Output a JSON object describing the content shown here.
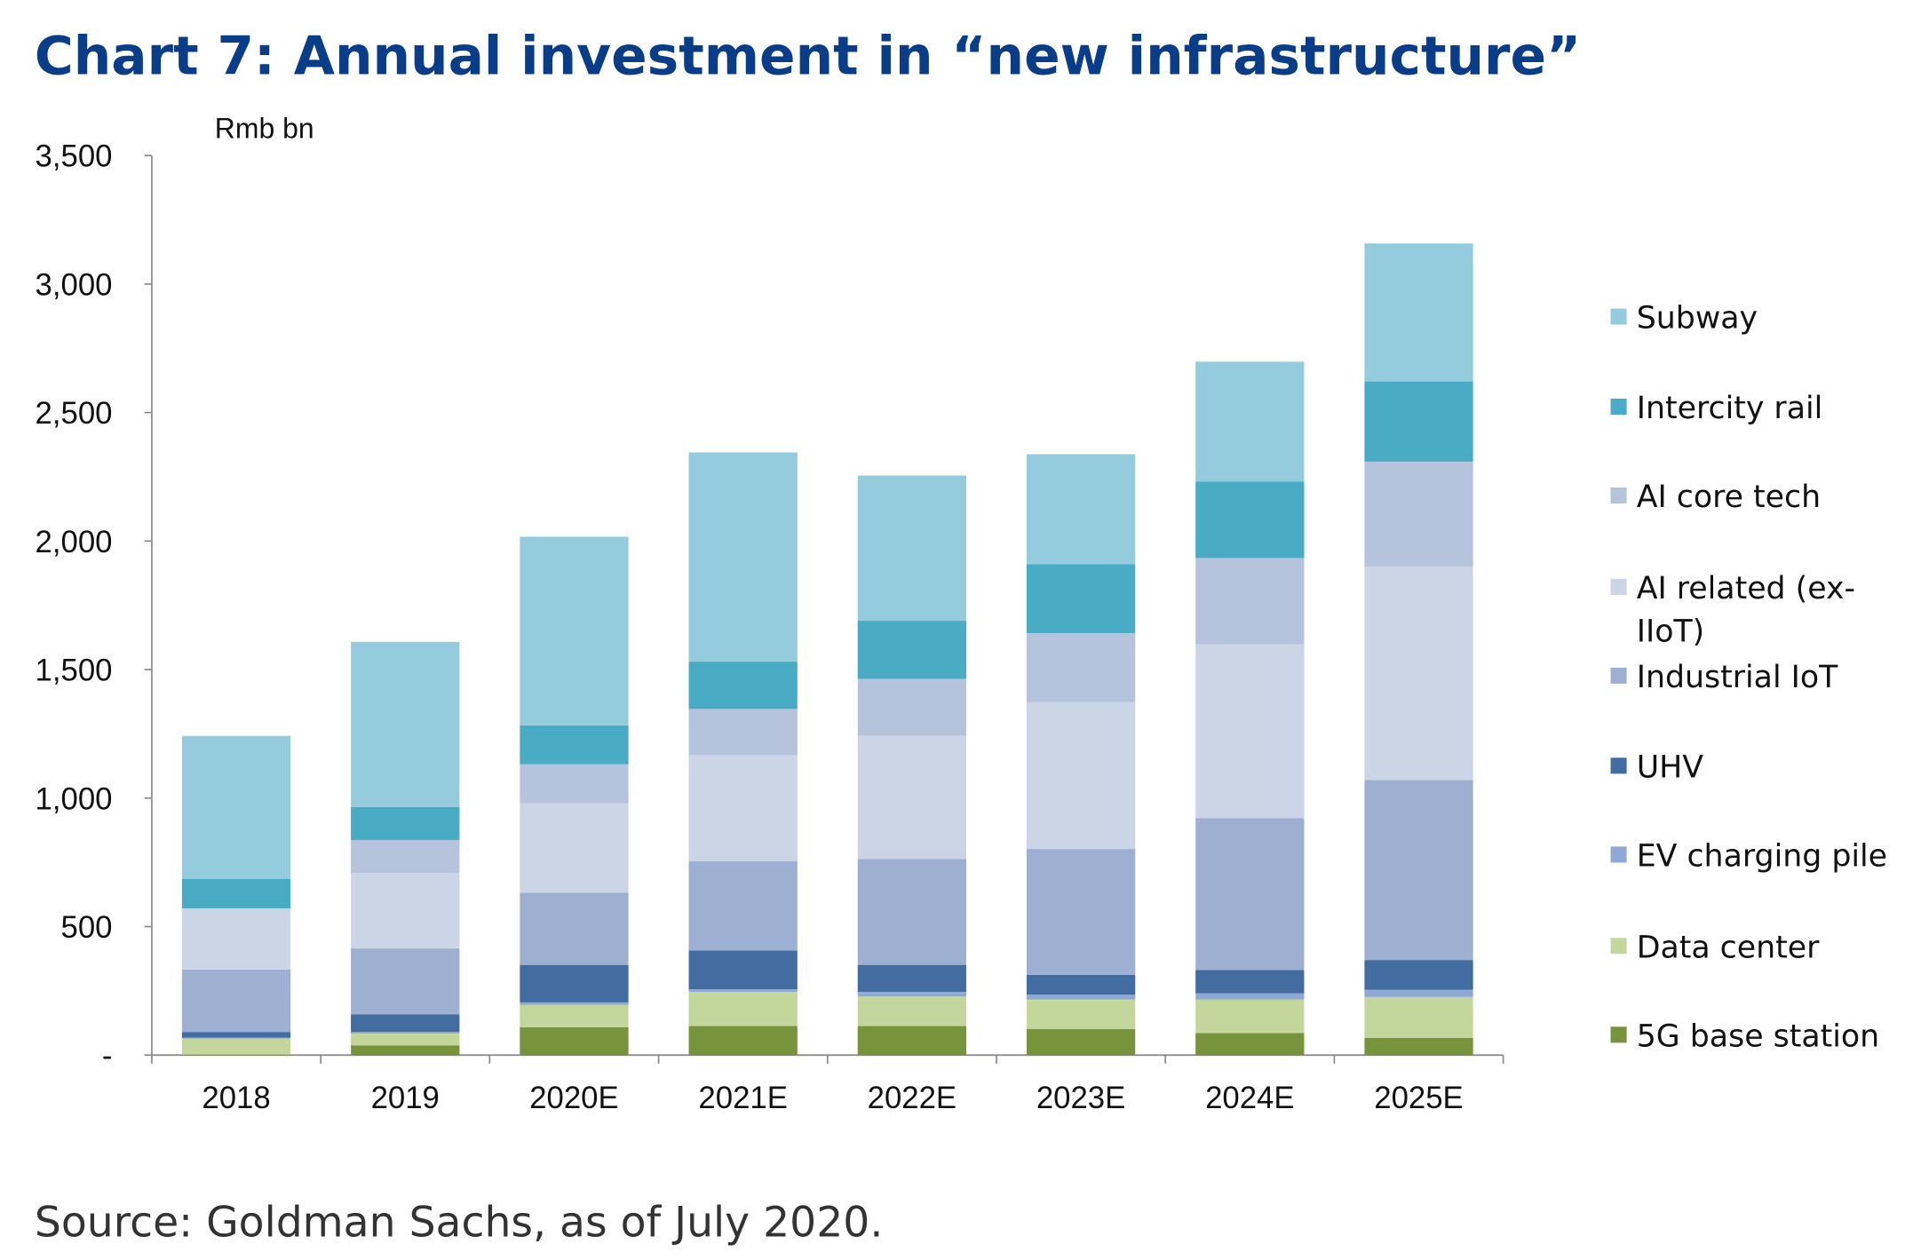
{
  "chart_data": {
    "type": "bar",
    "stacked": true,
    "title": "Chart 7: Annual investment in “new infrastructure”",
    "ylabel": "Rmb bn",
    "source": "Source: Goldman Sachs, as of July 2020.",
    "ylim": [
      0,
      3500
    ],
    "yticks": [
      0,
      500,
      1000,
      1500,
      2000,
      2500,
      3000,
      3500
    ],
    "ytick_labels": [
      "-",
      "500",
      "1,000",
      "1,500",
      "2,000",
      "2,500",
      "3,000",
      "3,500"
    ],
    "grid": false,
    "legend_position": "right",
    "categories": [
      "2018",
      "2019",
      "2020E",
      "2021E",
      "2022E",
      "2023E",
      "2024E",
      "2025E"
    ],
    "series": [
      {
        "name": "5G base station",
        "color": "#77933c",
        "values": [
          2,
          38,
          108,
          113,
          113,
          101,
          86,
          67
        ]
      },
      {
        "name": "Data center",
        "color": "#c3d69b",
        "values": [
          62,
          46,
          87,
          133,
          115,
          115,
          130,
          159
        ]
      },
      {
        "name": "EV charging pile",
        "color": "#8eaad4",
        "values": [
          4,
          6,
          10,
          10,
          18,
          19,
          24,
          28
        ]
      },
      {
        "name": "UHV",
        "color": "#436da0",
        "values": [
          22,
          69,
          146,
          151,
          105,
          77,
          91,
          116
        ]
      },
      {
        "name": "Industrial IoT",
        "color": "#9db0d2",
        "values": [
          243,
          256,
          281,
          348,
          412,
          490,
          591,
          700
        ]
      },
      {
        "name": "AI related (ex-IIoT)",
        "name_lines": [
          "AI related (ex-",
          "IIoT)"
        ],
        "color": "#cbd5e6",
        "values": [
          238,
          294,
          348,
          412,
          479,
          571,
          676,
          831
        ]
      },
      {
        "name": "AI core tech",
        "color": "#b5c3dd",
        "values": [
          0,
          128,
          152,
          180,
          222,
          269,
          336,
          408
        ]
      },
      {
        "name": "Intercity rail",
        "color": "#4aabc5",
        "values": [
          115,
          128,
          151,
          184,
          226,
          268,
          298,
          312
        ]
      },
      {
        "name": "Subway",
        "color": "#95ccdd",
        "values": [
          556,
          643,
          734,
          814,
          565,
          428,
          466,
          537
        ]
      }
    ]
  }
}
